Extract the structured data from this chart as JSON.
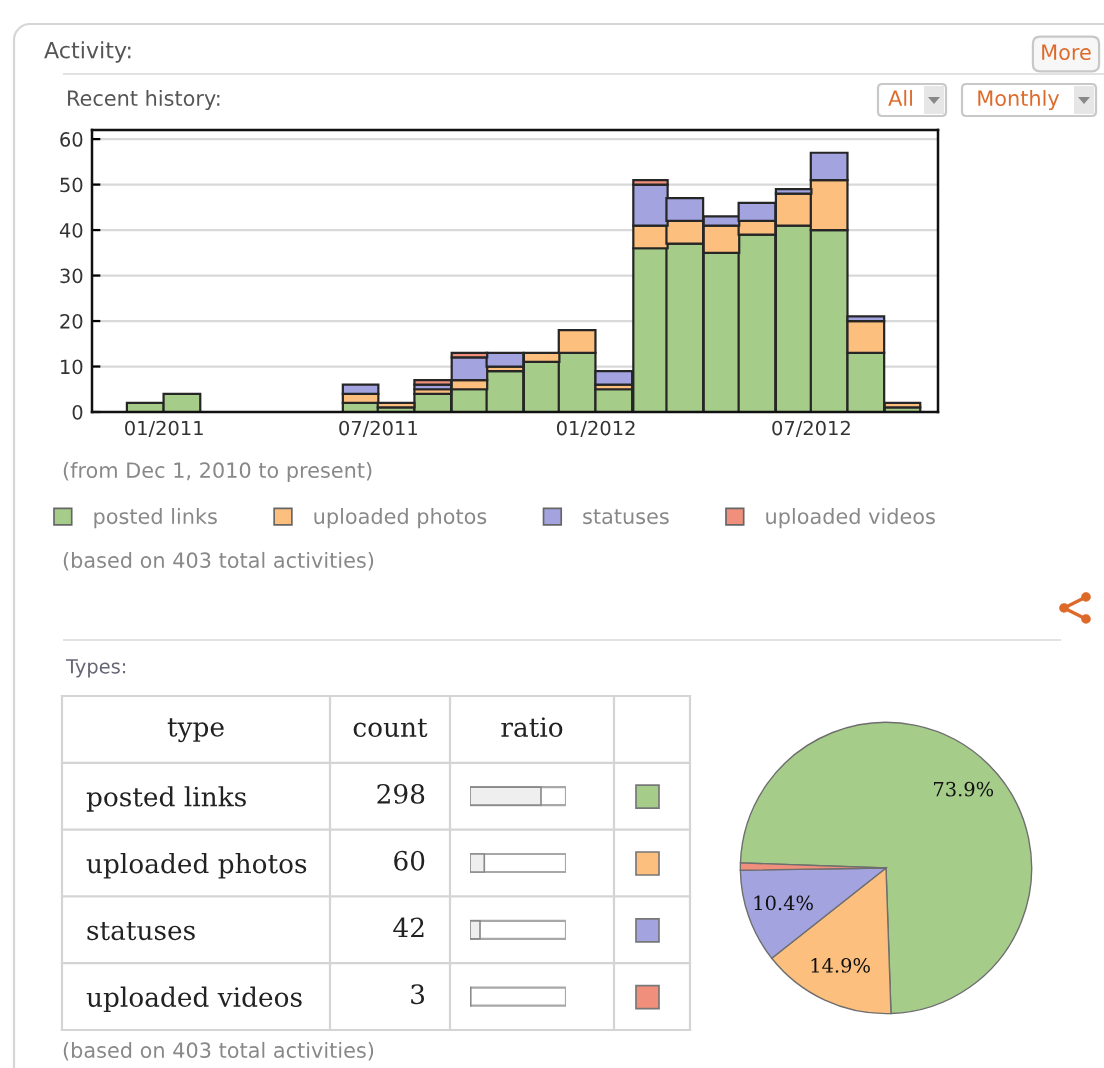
{
  "chart_data": [
    {
      "type": "bar",
      "stacked": true,
      "title": "Activity:",
      "subtitle": "Recent history:",
      "x": [
        "2010-12-16",
        "2011-01-16",
        "2011-02-16",
        "2011-03-16",
        "2011-04-16",
        "2011-05-16",
        "2011-06-16",
        "2011-07-16",
        "2011-08-16",
        "2011-09-16",
        "2011-10-16",
        "2011-11-16",
        "2011-12-16",
        "2012-01-16",
        "2012-02-16",
        "2012-03-16",
        "2012-04-16",
        "2012-05-16",
        "2012-06-16",
        "2012-07-16",
        "2012-08-16",
        "2012-09-16"
      ],
      "series": [
        {
          "name": "posted links",
          "color": "#a6cc8a",
          "values": [
            2,
            4,
            0,
            0,
            0,
            0,
            2,
            1,
            4,
            5,
            9,
            11,
            13,
            5,
            36,
            37,
            35,
            39,
            41,
            40,
            13,
            1
          ]
        },
        {
          "name": "uploaded photos",
          "color": "#fdbf7e",
          "values": [
            0,
            0,
            0,
            0,
            0,
            0,
            2,
            1,
            1,
            2,
            1,
            2,
            5,
            1,
            5,
            5,
            6,
            3,
            7,
            11,
            7,
            1
          ]
        },
        {
          "name": "statuses",
          "color": "#a3a3e0",
          "values": [
            0,
            0,
            0,
            0,
            0,
            0,
            2,
            0,
            1,
            5,
            3,
            0,
            0,
            3,
            9,
            5,
            2,
            4,
            1,
            6,
            1,
            0
          ]
        },
        {
          "name": "uploaded videos",
          "color": "#f0907c",
          "values": [
            0,
            0,
            0,
            0,
            0,
            0,
            0,
            0,
            1,
            1,
            0,
            0,
            0,
            0,
            1,
            0,
            0,
            0,
            0,
            0,
            0,
            0
          ]
        }
      ],
      "xlim": [
        "2010-11-01",
        "2012-10-16"
      ],
      "xticks": [
        {
          "value": "2011-01-01",
          "label": "01/2011"
        },
        {
          "value": "2011-07-01",
          "label": "07/2011"
        },
        {
          "value": "2012-01-01",
          "label": "01/2012"
        },
        {
          "value": "2012-07-01",
          "label": "07/2012"
        }
      ],
      "ylim": [
        0,
        62
      ],
      "yticks": [
        0,
        10,
        20,
        30,
        40,
        50,
        60
      ],
      "grid": "y",
      "legend": "bottom",
      "annotations": [
        "More",
        "All",
        "Monthly",
        "(from Dec 1, 2010 to present)",
        "(based on 403 total activities)"
      ]
    },
    {
      "type": "bar",
      "orientation": "horizontal",
      "title": "Types:",
      "categories": [
        "posted links",
        "uploaded photos",
        "statuses",
        "uploaded videos"
      ],
      "values": [
        298,
        60,
        42,
        3
      ],
      "color": "#efefef",
      "xlim": [
        0,
        403
      ],
      "data_labels": true,
      "tick_labels": "y",
      "annotations": [
        "type",
        "count",
        "ratio",
        "(based on 403 total activities)"
      ]
    },
    {
      "type": "pie",
      "categories": [
        null,
        null,
        null,
        null
      ],
      "values": [
        73.9,
        14.9,
        10.4,
        0.8
      ],
      "colors": [
        "#a6cc8a",
        "#fdbf7e",
        "#a3a3e0",
        "#f0907c"
      ],
      "value_labels": [
        "73.9%",
        "14.9%",
        "10.4%",
        null
      ]
    }
  ]
}
